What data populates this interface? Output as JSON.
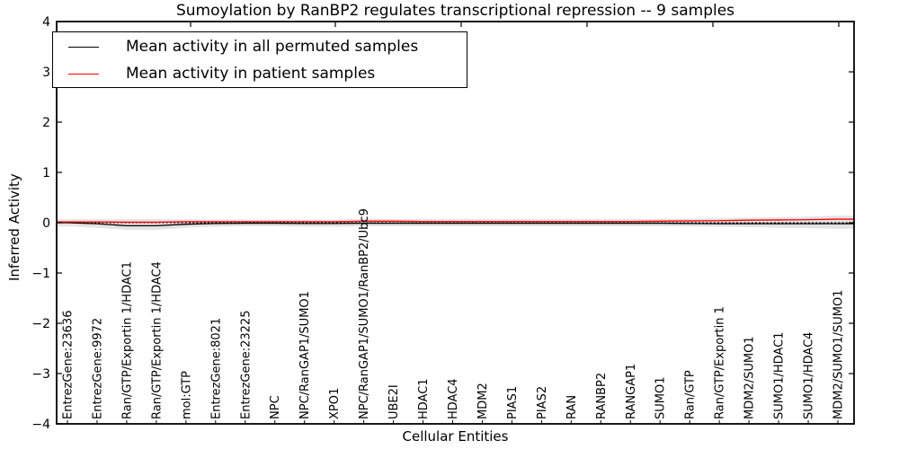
{
  "chart_data": {
    "type": "line",
    "title": "Sumoylation by RanBP2 regulates transcriptional repression -- 9 samples",
    "xlabel": "Cellular Entities",
    "ylabel": "Inferred Activity",
    "ylim": [
      -4,
      4
    ],
    "yticks": [
      4,
      3,
      2,
      1,
      0,
      -1,
      -2,
      -3,
      -4
    ],
    "grid": false,
    "background": "#ffffff",
    "frame_color": "#000000",
    "categories": [
      "EntrezGene:23636",
      "EntrezGene:9972",
      "Ran/GTP/Exportin 1/HDAC1",
      "Ran/GTP/Exportin 1/HDAC4",
      "mol:GTP",
      "EntrezGene:8021",
      "EntrezGene:23225",
      "NPC",
      "NPC/RanGAP1/SUMO1",
      "XPO1",
      "NPC/RanGAP1/SUMO1/RanBP2/Ubc9",
      "UBE2I",
      "HDAC1",
      "HDAC4",
      "MDM2",
      "PIAS1",
      "PIAS2",
      "RAN",
      "RANBP2",
      "RANGAP1",
      "SUMO1",
      "Ran/GTP",
      "Ran/GTP/Exportin 1",
      "MDM2/SUMO1",
      "SUMO1/HDAC1",
      "SUMO1/HDAC4",
      "MDM2/SUMO1/SUMO1"
    ],
    "series": [
      {
        "name": "Mean activity in all permuted samples",
        "color": "#000000",
        "values": [
          0.0,
          -0.02,
          -0.06,
          -0.06,
          -0.03,
          -0.015,
          -0.01,
          -0.01,
          -0.015,
          -0.015,
          -0.01,
          -0.01,
          -0.01,
          -0.01,
          -0.01,
          -0.01,
          -0.01,
          -0.01,
          -0.01,
          -0.01,
          -0.01,
          -0.015,
          -0.02,
          -0.02,
          -0.02,
          -0.02,
          -0.02
        ]
      },
      {
        "name": "Mean activity in patient samples",
        "color": "#ff0000",
        "values": [
          0.015,
          0.015,
          0.01,
          0.01,
          0.02,
          0.02,
          0.02,
          0.02,
          0.02,
          0.02,
          0.03,
          0.03,
          0.025,
          0.025,
          0.025,
          0.025,
          0.025,
          0.025,
          0.025,
          0.025,
          0.03,
          0.035,
          0.04,
          0.05,
          0.055,
          0.06,
          0.07
        ]
      }
    ],
    "band": {
      "color": "#e3e3e3",
      "upper": [
        0.07,
        0.07,
        0.07,
        0.07,
        0.07,
        0.065,
        0.06,
        0.06,
        0.06,
        0.06,
        0.08,
        0.075,
        0.07,
        0.07,
        0.07,
        0.07,
        0.07,
        0.07,
        0.07,
        0.07,
        0.075,
        0.08,
        0.09,
        0.1,
        0.11,
        0.12,
        0.14
      ],
      "lower": [
        -0.07,
        -0.1,
        -0.14,
        -0.14,
        -0.1,
        -0.08,
        -0.07,
        -0.07,
        -0.08,
        -0.08,
        -0.07,
        -0.07,
        -0.07,
        -0.07,
        -0.07,
        -0.07,
        -0.07,
        -0.07,
        -0.07,
        -0.07,
        -0.07,
        -0.075,
        -0.08,
        -0.09,
        -0.1,
        -0.11,
        -0.12
      ]
    },
    "zero_line": {
      "value": 0,
      "style": "dotted",
      "color": "#000000"
    },
    "legend": {
      "position": "upper-left"
    }
  }
}
